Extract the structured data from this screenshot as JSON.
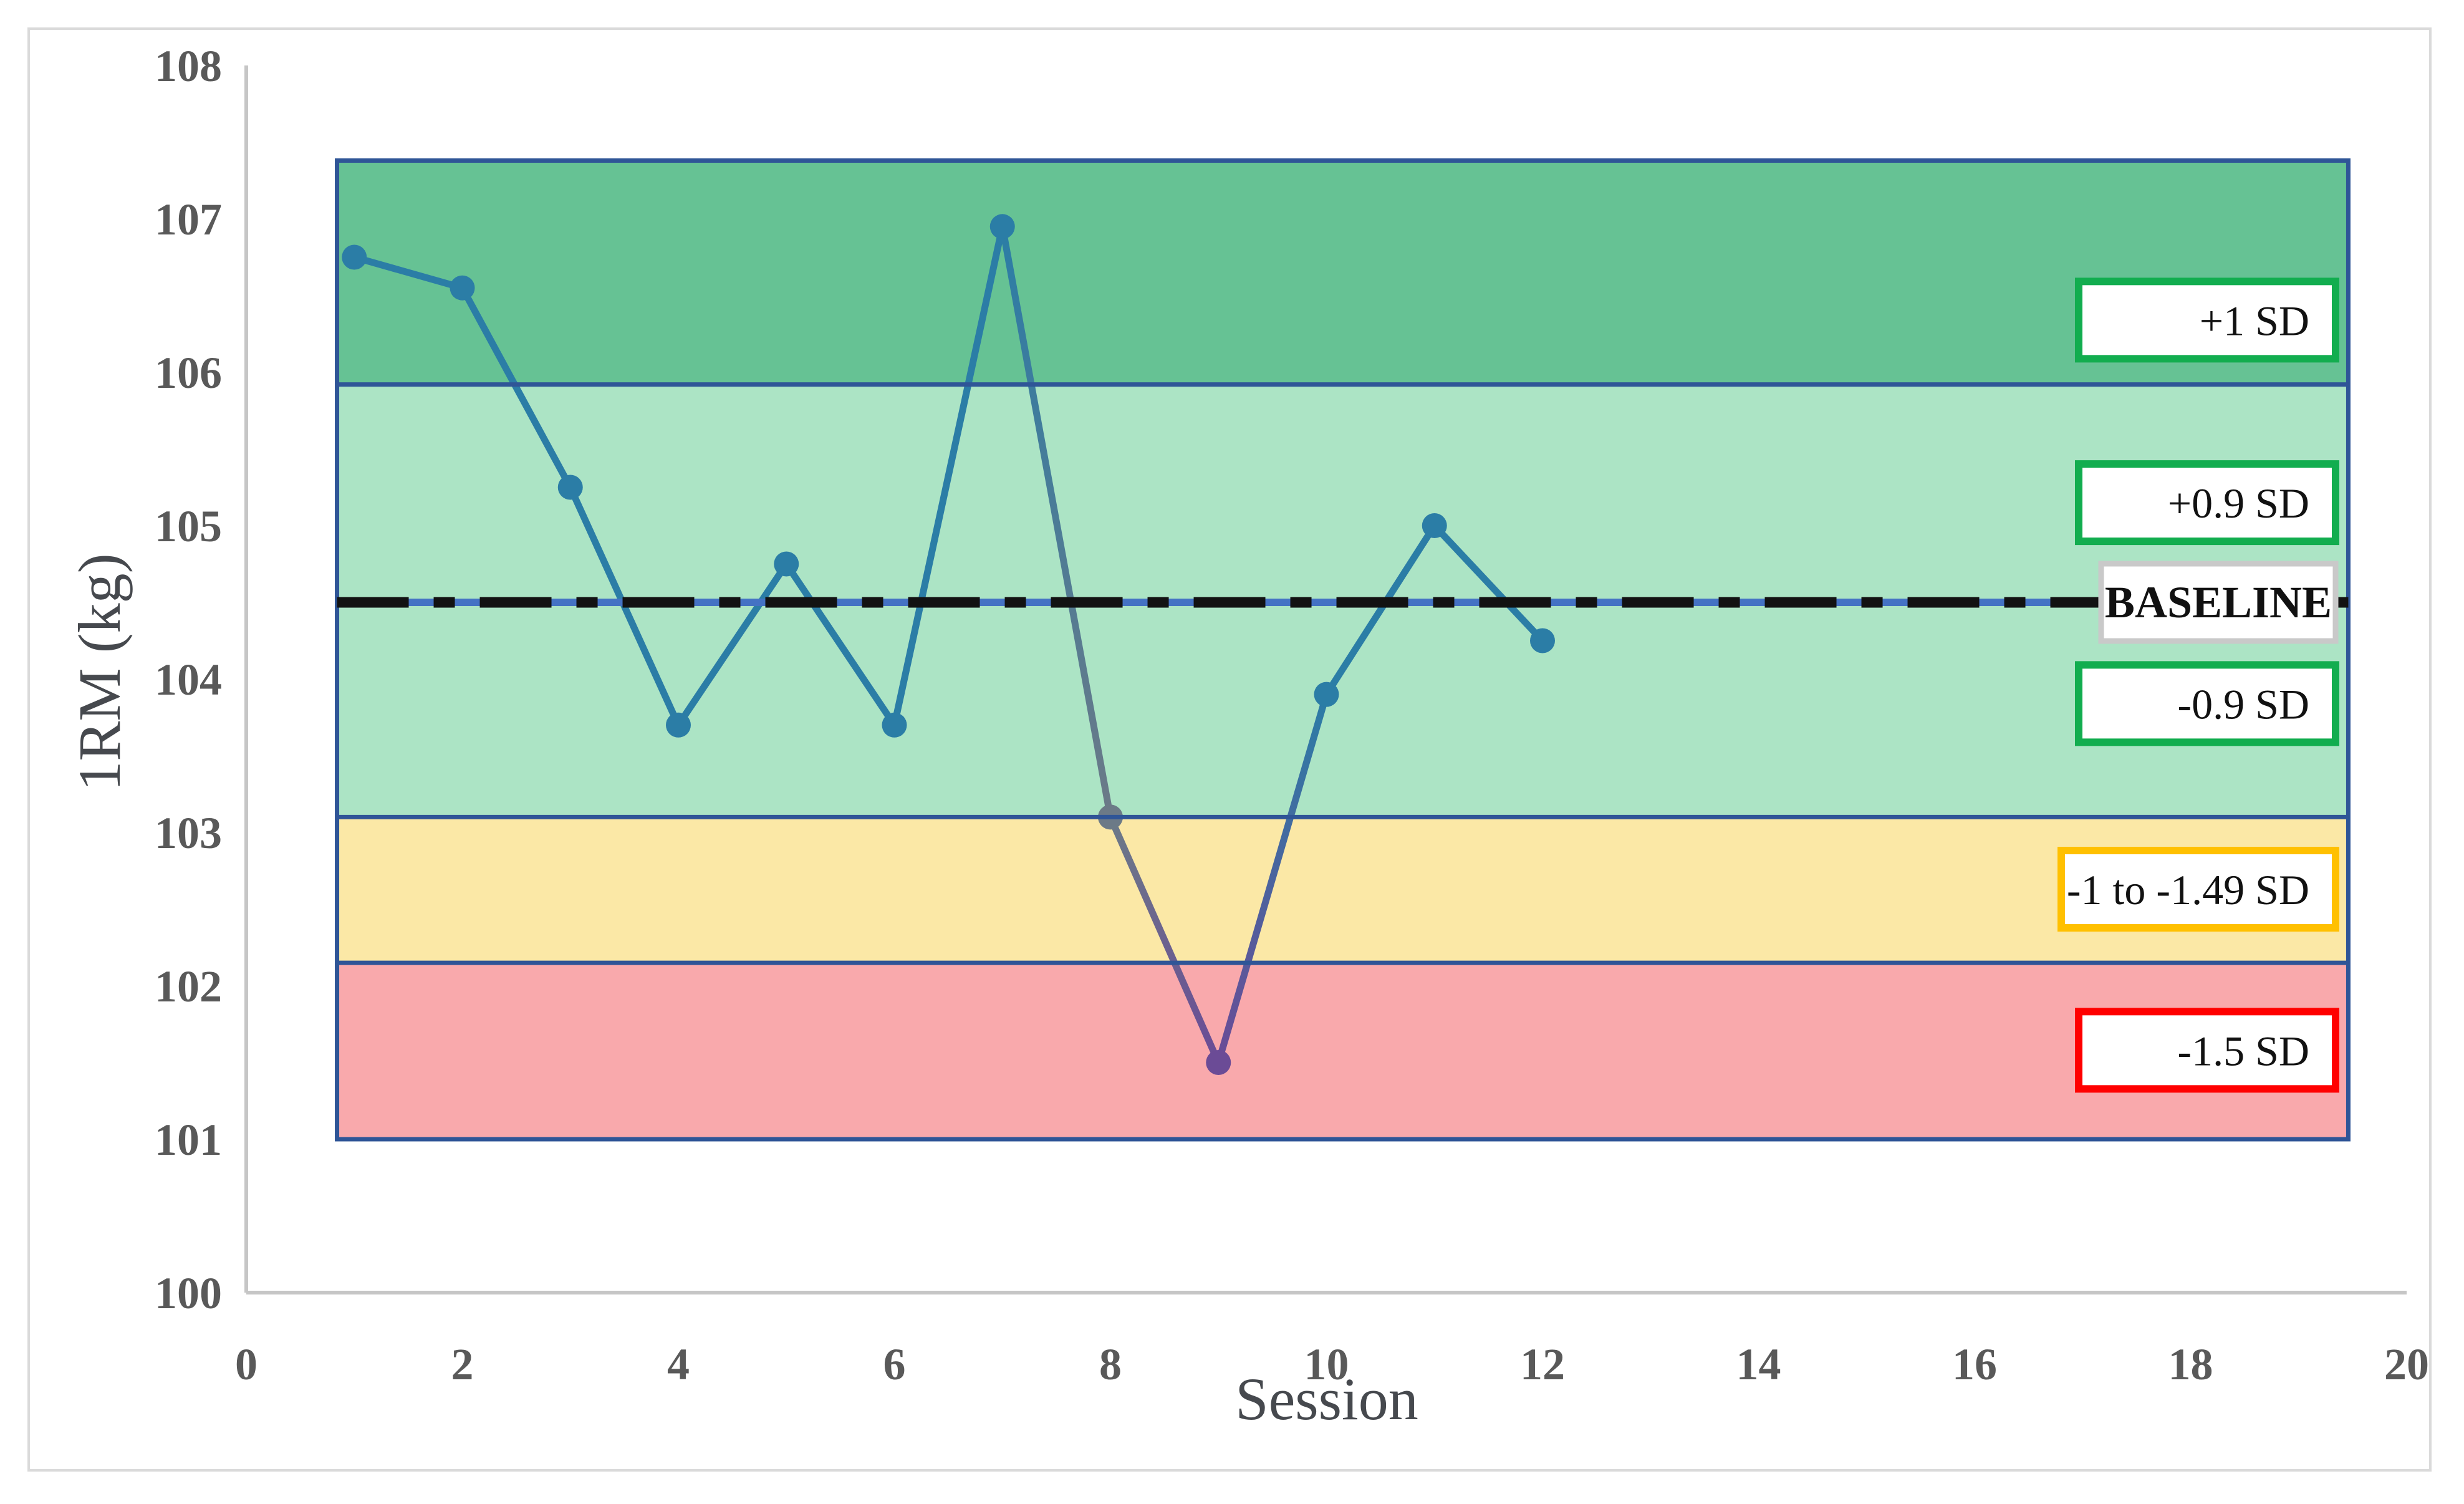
{
  "figure": {
    "background": "#FFFFFF",
    "border_color": "#DADADA"
  },
  "chart_data": {
    "type": "line",
    "title": "",
    "xlabel": "Session",
    "ylabel": "1RM (kg)",
    "xlim": [
      0,
      20
    ],
    "ylim": [
      100,
      108
    ],
    "x_ticks": [
      "0",
      "2",
      "4",
      "6",
      "8",
      "10",
      "12",
      "14",
      "16",
      "18",
      "20"
    ],
    "y_ticks": [
      "100",
      "101",
      "102",
      "103",
      "104",
      "105",
      "106",
      "107",
      "108"
    ],
    "grid": false,
    "series": [
      {
        "name": "1RM",
        "x": [
          1,
          2,
          3,
          4,
          5,
          6,
          7,
          8,
          9,
          10,
          11,
          12
        ],
        "values": [
          106.75,
          106.55,
          105.25,
          103.7,
          104.75,
          103.7,
          106.95,
          103.1,
          101.5,
          103.9,
          105.0,
          104.25
        ],
        "color": "#2B7DA6",
        "point_color_overrides": {
          "8": "#6C7A87",
          "9": "#6B4B96"
        }
      }
    ],
    "baseline": {
      "label": "BASELINE",
      "value": 104.5,
      "line_color": "#4472C4",
      "dash_color": "#121212"
    },
    "zones": [
      {
        "name": "plus-1sd-zone",
        "label": "+1 SD",
        "from": 105.92,
        "to": 107.38,
        "fill": "#66C294"
      },
      {
        "name": "within-0-9sd-zone",
        "label": "+0.9 / -0.9 SD",
        "from": 103.1,
        "to": 105.92,
        "fill": "#ACE4C5"
      },
      {
        "name": "minus-1-to-1-49sd-zone",
        "label": "-1 to -1.49 SD",
        "from": 102.15,
        "to": 103.1,
        "fill": "#FBE8A6"
      },
      {
        "name": "minus-1-5sd-zone",
        "label": "-1.5 SD",
        "from": 101.0,
        "to": 102.15,
        "fill": "#F9A9AC"
      }
    ],
    "zone_x_range": [
      0.84,
      19.46
    ],
    "zone_border_color": "#2F5597",
    "annotations": [
      {
        "text": "+1 SD",
        "y": 106.34,
        "border_color": "#12AD4F",
        "bold": false
      },
      {
        "text": "+0.9 SD",
        "y": 105.15,
        "border_color": "#12AD4F",
        "bold": false
      },
      {
        "text": "BASELINE",
        "y": 104.5,
        "border_color": "#C9C9C9",
        "bold": true
      },
      {
        "text": "-0.9 SD",
        "y": 103.84,
        "border_color": "#12AD4F",
        "bold": false
      },
      {
        "text": "-1 to -1.49 SD",
        "y": 102.63,
        "border_color": "#FFC000",
        "bold": false
      },
      {
        "text": "-1.5 SD",
        "y": 101.58,
        "border_color": "#FF0000",
        "bold": false
      }
    ],
    "axis_line_color": "#C6C6C6",
    "tick_label_color": "#595959",
    "axis_title_color": "#46494E",
    "annotation_text_color": "#111111"
  }
}
